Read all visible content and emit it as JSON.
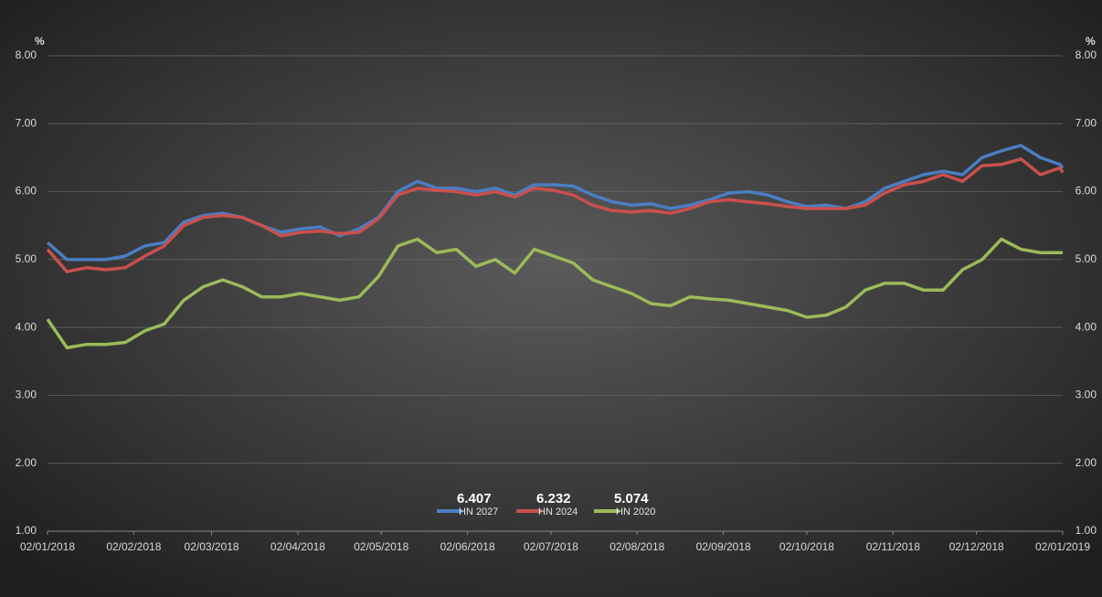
{
  "chart_data": {
    "type": "line",
    "y_unit": "%",
    "x": [
      "02/01/2018",
      "09/01/2018",
      "16/01/2018",
      "23/01/2018",
      "30/01/2018",
      "06/02/2018",
      "13/02/2018",
      "20/02/2018",
      "27/02/2018",
      "06/03/2018",
      "13/03/2018",
      "20/03/2018",
      "27/03/2018",
      "03/04/2018",
      "10/04/2018",
      "17/04/2018",
      "24/04/2018",
      "01/05/2018",
      "08/05/2018",
      "15/05/2018",
      "22/05/2018",
      "29/05/2018",
      "05/06/2018",
      "12/06/2018",
      "19/06/2018",
      "26/06/2018",
      "03/07/2018",
      "10/07/2018",
      "17/07/2018",
      "24/07/2018",
      "31/07/2018",
      "07/08/2018",
      "14/08/2018",
      "21/08/2018",
      "28/08/2018",
      "04/09/2018",
      "11/09/2018",
      "18/09/2018",
      "25/09/2018",
      "02/10/2018",
      "09/10/2018",
      "16/10/2018",
      "23/10/2018",
      "30/10/2018",
      "06/11/2018",
      "13/11/2018",
      "20/11/2018",
      "27/11/2018",
      "04/12/2018",
      "11/12/2018",
      "18/12/2018",
      "25/12/2018",
      "01/01/2019",
      "02/01/2019"
    ],
    "series": [
      {
        "name": "HN 2027",
        "color": "#4a7ec4",
        "latest": 6.407,
        "values": [
          5.25,
          5.0,
          5.0,
          5.0,
          5.05,
          5.2,
          5.25,
          5.55,
          5.65,
          5.68,
          5.62,
          5.5,
          5.4,
          5.45,
          5.48,
          5.35,
          5.45,
          5.62,
          6.0,
          6.15,
          6.05,
          6.05,
          6.0,
          6.05,
          5.95,
          6.1,
          6.1,
          6.08,
          5.95,
          5.85,
          5.8,
          5.82,
          5.75,
          5.8,
          5.88,
          5.98,
          6.0,
          5.95,
          5.85,
          5.78,
          5.8,
          5.75,
          5.85,
          6.05,
          6.15,
          6.25,
          6.3,
          6.25,
          6.5,
          6.6,
          6.68,
          6.5,
          6.4,
          6.35
        ]
      },
      {
        "name": "HN 2024",
        "color": "#c9504d",
        "latest": 6.232,
        "values": [
          5.15,
          4.82,
          4.88,
          4.85,
          4.88,
          5.05,
          5.2,
          5.5,
          5.62,
          5.65,
          5.62,
          5.5,
          5.35,
          5.4,
          5.42,
          5.38,
          5.4,
          5.6,
          5.95,
          6.05,
          6.02,
          6.0,
          5.95,
          6.0,
          5.92,
          6.05,
          6.02,
          5.95,
          5.8,
          5.72,
          5.7,
          5.72,
          5.68,
          5.75,
          5.85,
          5.88,
          5.85,
          5.82,
          5.78,
          5.75,
          5.75,
          5.75,
          5.8,
          5.98,
          6.1,
          6.15,
          6.25,
          6.15,
          6.38,
          6.4,
          6.48,
          6.25,
          6.35,
          6.28
        ]
      },
      {
        "name": "HN 2020",
        "color": "#9bbb59",
        "latest": 5.074,
        "values": [
          4.12,
          3.7,
          3.75,
          3.75,
          3.78,
          3.95,
          4.05,
          4.4,
          4.6,
          4.7,
          4.6,
          4.45,
          4.45,
          4.5,
          4.45,
          4.4,
          4.45,
          4.75,
          5.2,
          5.3,
          5.1,
          5.15,
          4.9,
          5.0,
          4.8,
          5.15,
          5.05,
          4.95,
          4.7,
          4.6,
          4.5,
          4.35,
          4.32,
          4.45,
          4.42,
          4.4,
          4.35,
          4.3,
          4.25,
          4.15,
          4.18,
          4.3,
          4.55,
          4.65,
          4.65,
          4.55,
          4.55,
          4.85,
          5.0,
          5.3,
          5.15,
          5.1,
          5.1,
          5.1
        ]
      }
    ],
    "xlim": [
      "02/01/2018",
      "02/01/2019"
    ],
    "xticks": [
      "02/01/2018",
      "02/02/2018",
      "02/03/2018",
      "02/04/2018",
      "02/05/2018",
      "02/06/2018",
      "02/07/2018",
      "02/08/2018",
      "02/09/2018",
      "02/10/2018",
      "02/11/2018",
      "02/12/2018",
      "02/01/2019"
    ],
    "ylim": [
      1,
      8
    ],
    "yticks": [
      {
        "value": 1,
        "label": "1.00"
      },
      {
        "value": 2,
        "label": "2.00"
      },
      {
        "value": 3,
        "label": "3.00"
      },
      {
        "value": 4,
        "label": "4.00"
      },
      {
        "value": 5,
        "label": "5.00"
      },
      {
        "value": 6,
        "label": "6.00"
      },
      {
        "value": 7,
        "label": "7.00"
      },
      {
        "value": 8,
        "label": "8.00"
      }
    ],
    "y2lim": [
      1,
      8
    ],
    "y2ticks": [
      {
        "value": 1,
        "label": "1.00"
      },
      {
        "value": 2,
        "label": "2.00"
      },
      {
        "value": 3,
        "label": "3.00"
      },
      {
        "value": 4,
        "label": "4.00"
      },
      {
        "value": 5,
        "label": "5.00"
      },
      {
        "value": 6,
        "label": "6.00"
      },
      {
        "value": 7,
        "label": "7.00"
      },
      {
        "value": 8,
        "label": "8.00"
      }
    ],
    "grid": true
  }
}
